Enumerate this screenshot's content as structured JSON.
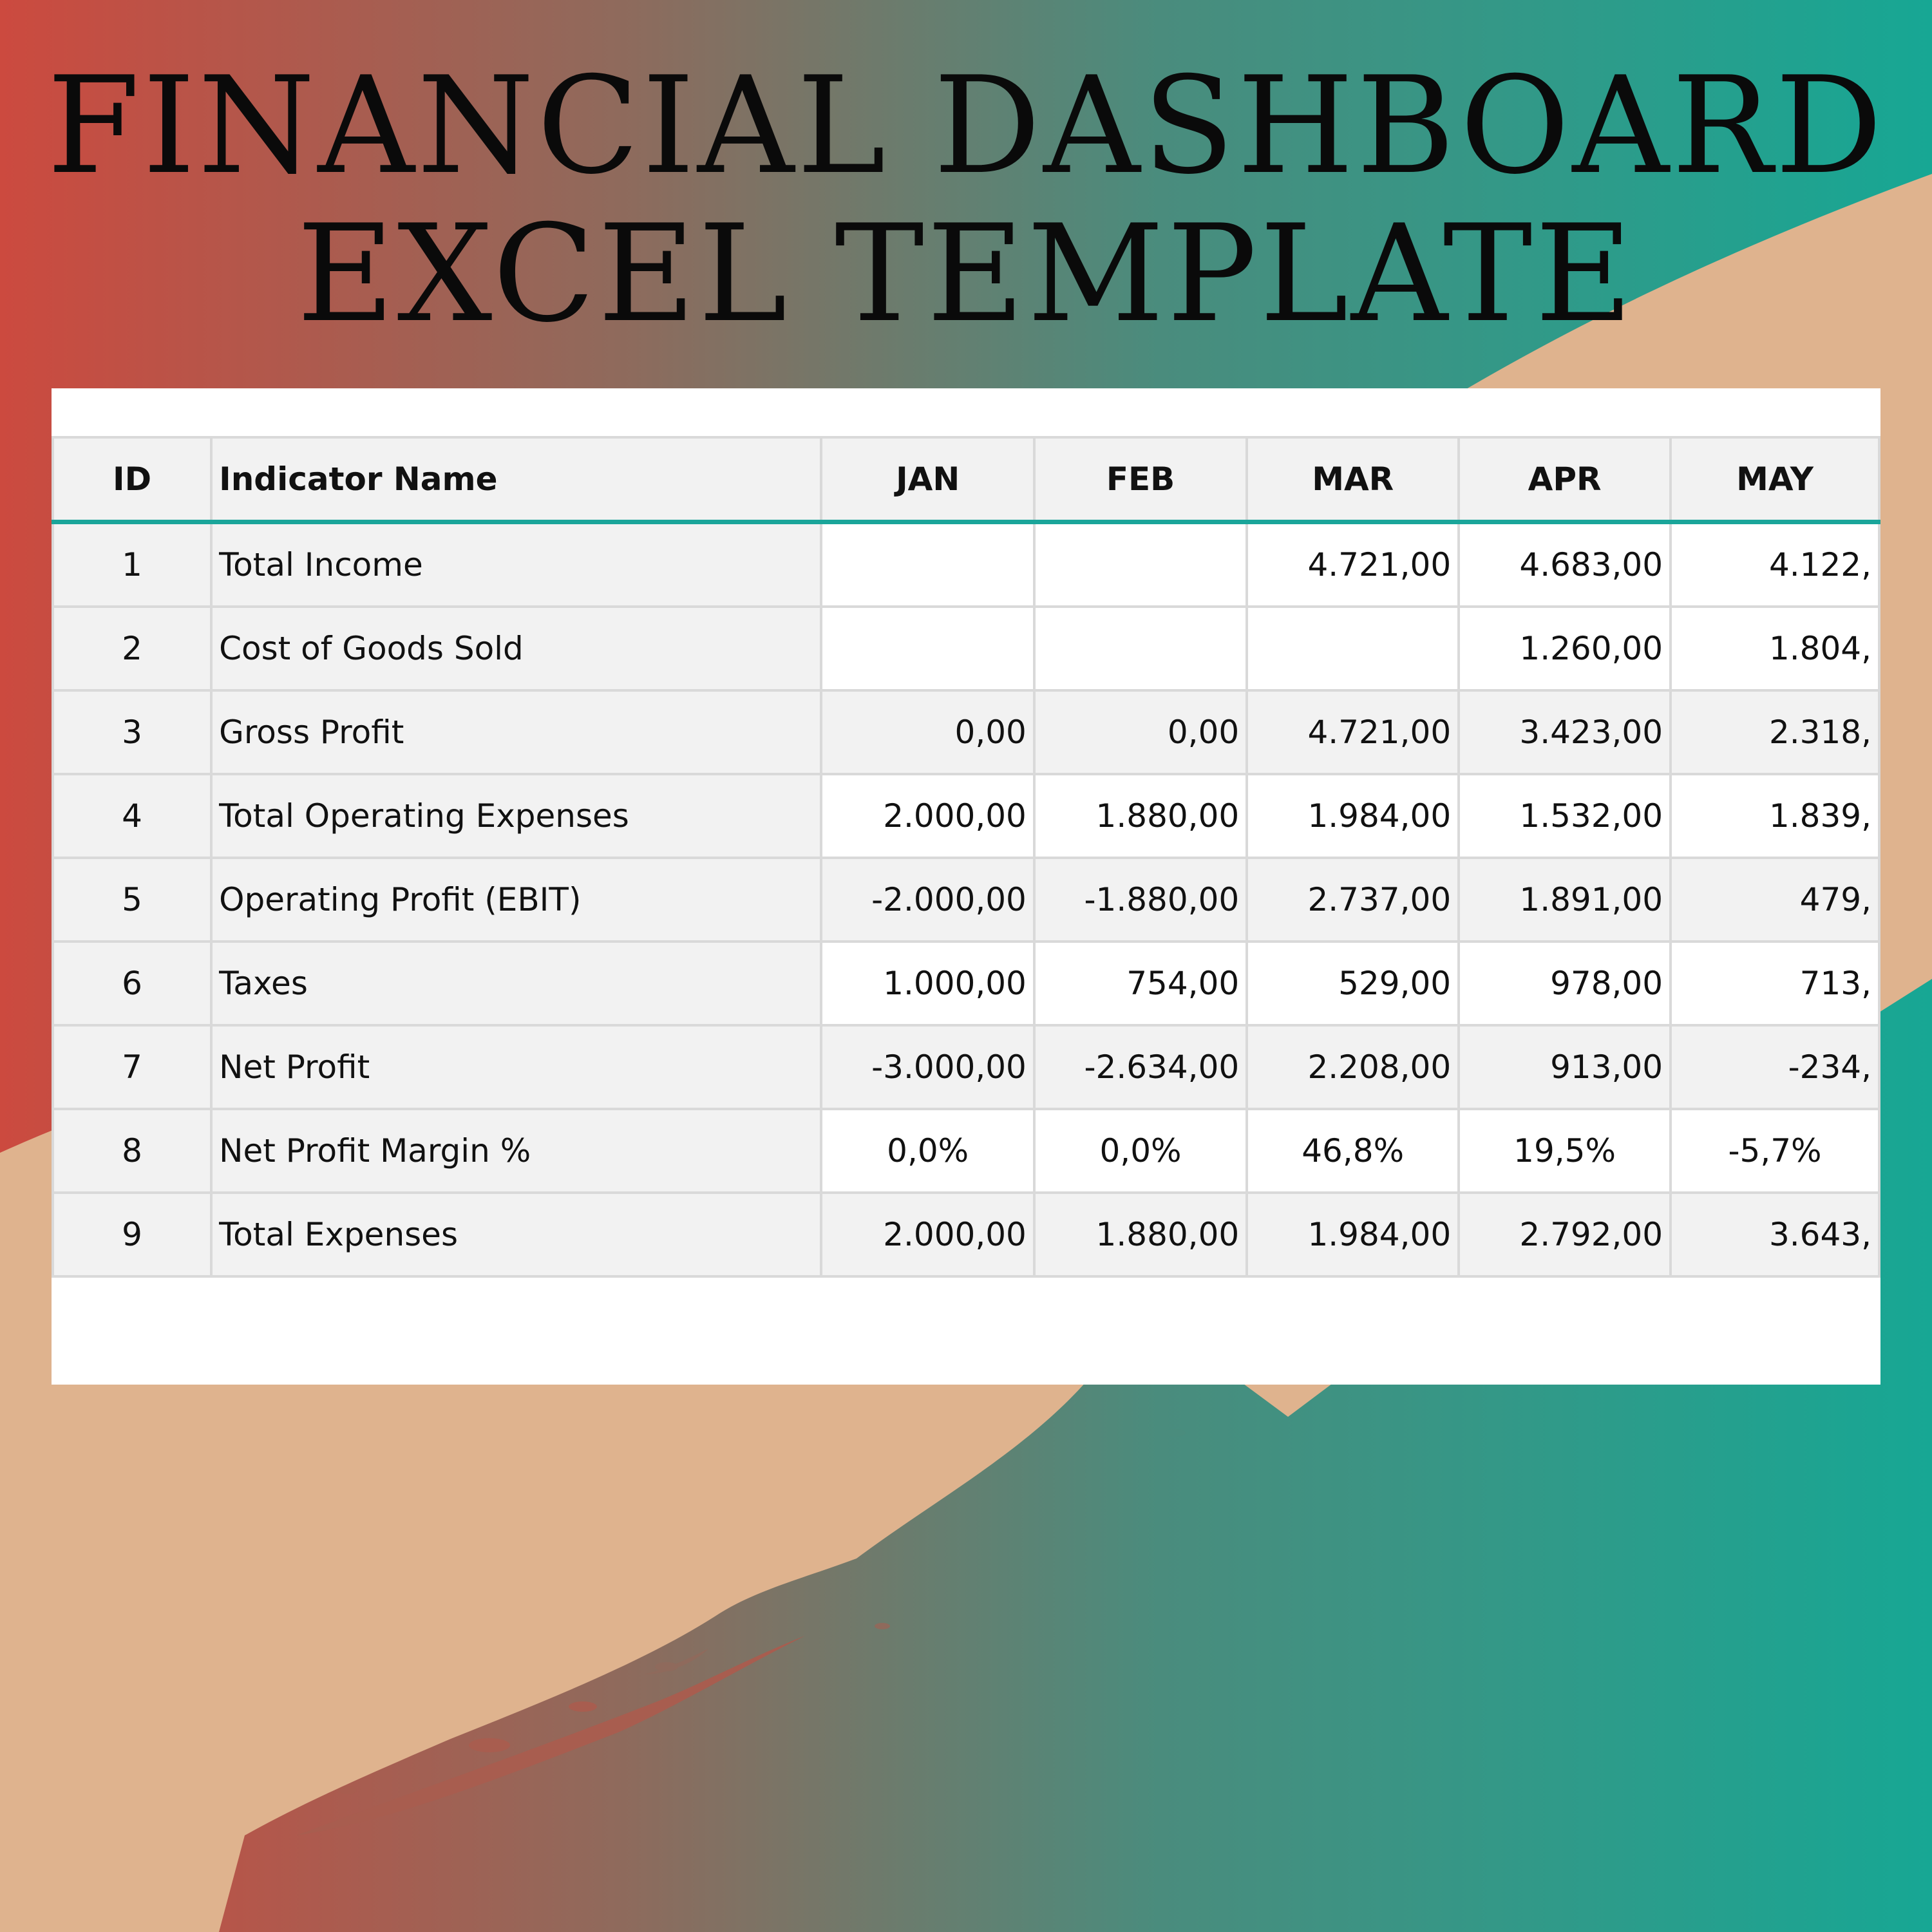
{
  "title": {
    "line1": "FINANCIAL DASHBOARD",
    "line2": "EXCEL TEMPLATE"
  },
  "colors": {
    "red": "#cc4a3f",
    "teal": "#17a794",
    "beige": "#dfb38e",
    "header_rule": "#1aa59a"
  },
  "table": {
    "headers": {
      "id": "ID",
      "name": "Indicator Name",
      "months": [
        "JAN",
        "FEB",
        "MAR",
        "APR",
        "MAY"
      ]
    },
    "rows": [
      {
        "id": "1",
        "name": "Total Income",
        "values": [
          "",
          "",
          "4.721,00",
          "4.683,00",
          "4.122,"
        ]
      },
      {
        "id": "2",
        "name": "Cost of Goods Sold",
        "values": [
          "",
          "",
          "",
          "1.260,00",
          "1.804,"
        ]
      },
      {
        "id": "3",
        "name": "Gross Profit",
        "values": [
          "0,00",
          "0,00",
          "4.721,00",
          "3.423,00",
          "2.318,"
        ]
      },
      {
        "id": "4",
        "name": "Total Operating Expenses",
        "values": [
          "2.000,00",
          "1.880,00",
          "1.984,00",
          "1.532,00",
          "1.839,"
        ]
      },
      {
        "id": "5",
        "name": "Operating Profit (EBIT)",
        "values": [
          "-2.000,00",
          "-1.880,00",
          "2.737,00",
          "1.891,00",
          "479,"
        ]
      },
      {
        "id": "6",
        "name": "Taxes",
        "values": [
          "1.000,00",
          "754,00",
          "529,00",
          "978,00",
          "713,"
        ]
      },
      {
        "id": "7",
        "name": "Net Profit",
        "values": [
          "-3.000,00",
          "-2.634,00",
          "2.208,00",
          "913,00",
          "-234,"
        ]
      },
      {
        "id": "8",
        "name": "Net Profit Margin %",
        "values": [
          "0,0%",
          "0,0%",
          "46,8%",
          "19,5%",
          "-5,7%"
        ]
      },
      {
        "id": "9",
        "name": "Total Expenses",
        "values": [
          "2.000,00",
          "1.880,00",
          "1.984,00",
          "2.792,00",
          "3.643,"
        ]
      }
    ]
  }
}
